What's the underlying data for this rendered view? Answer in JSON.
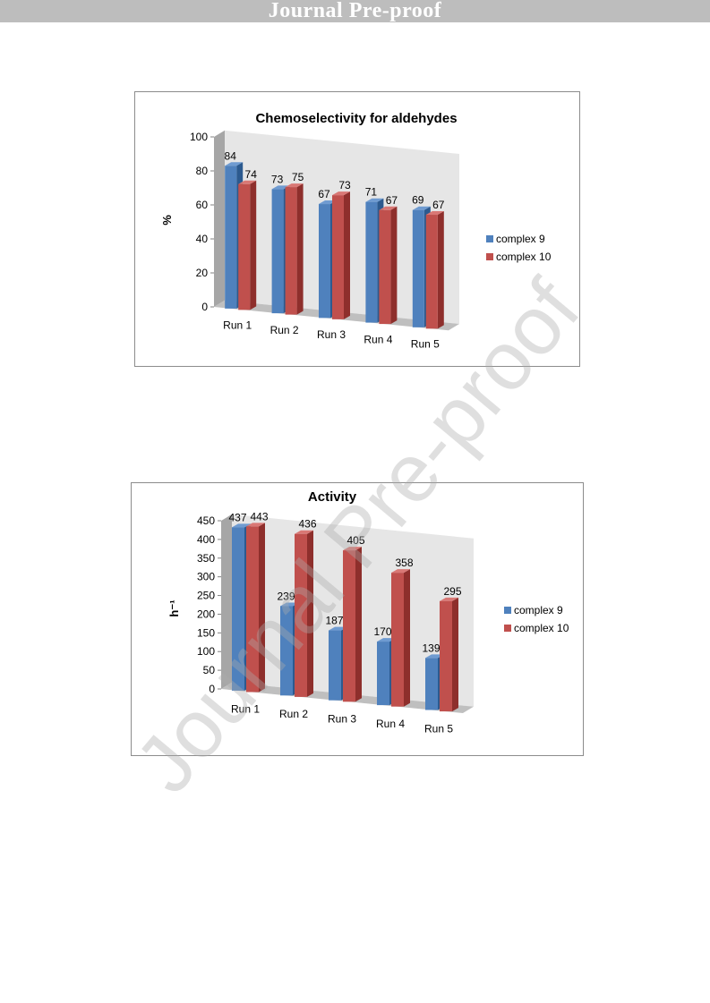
{
  "banner": {
    "text": "Journal Pre-proof"
  },
  "watermark": {
    "text": "Journal Pre-proof"
  },
  "colors": {
    "complex_9": "#4f81bd",
    "complex_9_top": "#6f9bd1",
    "complex_9_side": "#2c5a8f",
    "complex_10": "#c0504d",
    "complex_10_top": "#d97875",
    "complex_10_side": "#8e2f2c",
    "wall": "#d9d9d9",
    "floor": "#bfbfbf"
  },
  "chart_data": [
    {
      "type": "bar",
      "title": "Chemoselectivity for aldehydes",
      "xlabel": "",
      "ylabel": "%",
      "categories": [
        "Run 1",
        "Run 2",
        "Run 3",
        "Run 4",
        "Run 5"
      ],
      "ylim": [
        0,
        100
      ],
      "yticks": [
        0,
        20,
        40,
        60,
        80,
        100
      ],
      "series": [
        {
          "name": "complex 9",
          "values": [
            84,
            73,
            67,
            71,
            69
          ]
        },
        {
          "name": "complex 10",
          "values": [
            74,
            75,
            73,
            67,
            67
          ]
        }
      ],
      "legend": "right",
      "grid": false,
      "style": "3d-clustered-column"
    },
    {
      "type": "bar",
      "title": "Activity",
      "xlabel": "",
      "ylabel": "h⁻¹",
      "categories": [
        "Run 1",
        "Run 2",
        "Run 3",
        "Run 4",
        "Run 5"
      ],
      "ylim": [
        0,
        450
      ],
      "yticks": [
        0,
        50,
        100,
        150,
        200,
        250,
        300,
        350,
        400,
        450
      ],
      "series": [
        {
          "name": "complex 9",
          "values": [
            437,
            239,
            187,
            170,
            139
          ]
        },
        {
          "name": "complex 10",
          "values": [
            443,
            436,
            405,
            358,
            295
          ]
        }
      ],
      "legend": "right",
      "grid": false,
      "style": "3d-clustered-column"
    }
  ]
}
